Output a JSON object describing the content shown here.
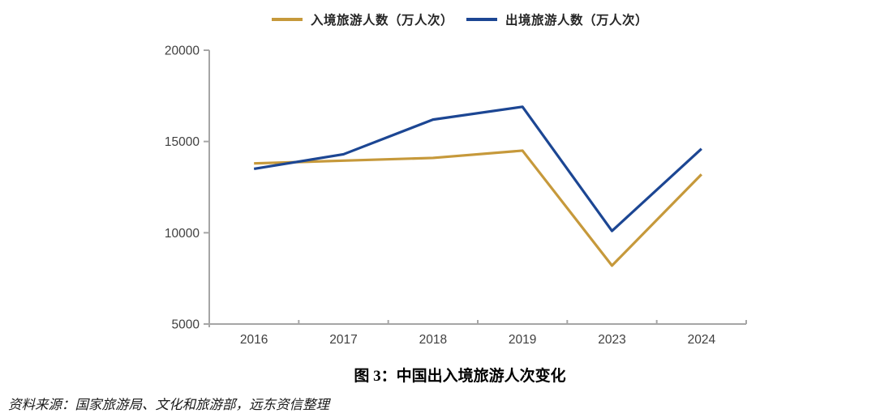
{
  "figure": {
    "caption": "图 3：中国出入境旅游人次变化",
    "source_note": "资料来源：国家旅游局、文化和旅游部，远东资信整理"
  },
  "chart_data": {
    "type": "line",
    "title": "图 3：中国出入境旅游人次变化",
    "categories": [
      "2016",
      "2017",
      "2018",
      "2019",
      "2023",
      "2024"
    ],
    "series": [
      {
        "key": "inbound",
        "name": "入境旅游人数（万人次）",
        "color": "#C6993B",
        "values": [
          13800,
          13950,
          14100,
          14500,
          8200,
          13200
        ]
      },
      {
        "key": "outbound",
        "name": "出境旅游人数（万人次）",
        "color": "#1C4693",
        "values": [
          13500,
          14300,
          16200,
          16900,
          10100,
          14600
        ]
      }
    ],
    "ylim": [
      5000,
      20000
    ],
    "yticks": [
      5000,
      10000,
      15000,
      20000
    ],
    "grid": false,
    "legend_position": "top",
    "axis_color": "#A6A6A6",
    "tick_label_color": "#404040"
  }
}
